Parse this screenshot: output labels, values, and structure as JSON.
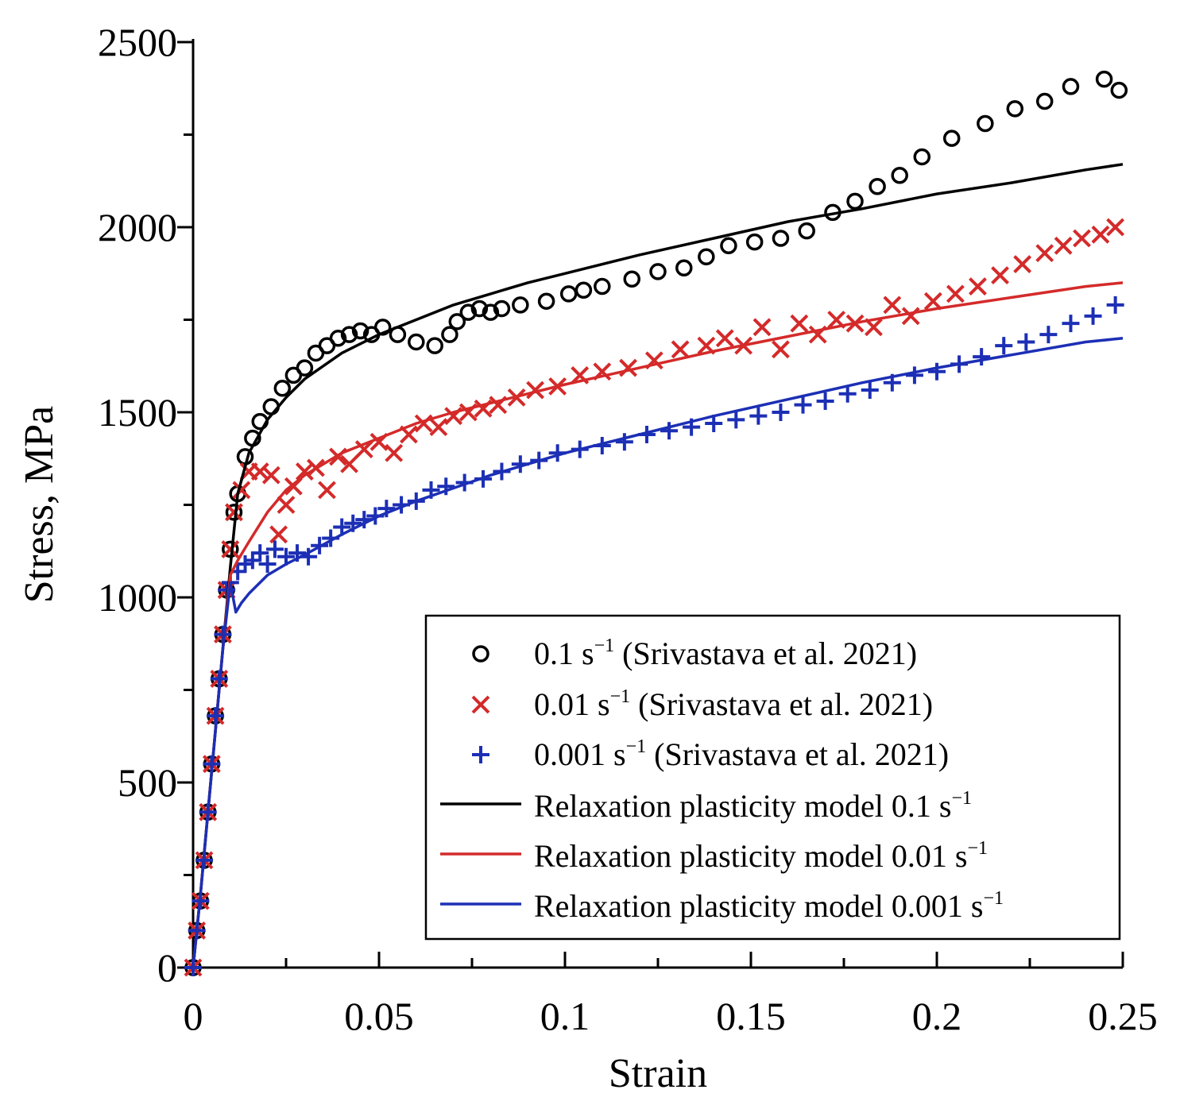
{
  "chart_data": {
    "type": "scatter",
    "xlabel": "Strain",
    "ylabel": "Stress, MPa",
    "xlim": [
      0,
      0.25
    ],
    "ylim": [
      0,
      2500
    ],
    "x_ticks": [
      0,
      0.05,
      0.1,
      0.15,
      0.2,
      0.25
    ],
    "x_tick_labels": [
      "0",
      "0.05",
      "0.1",
      "0.15",
      "0.2",
      "0.25"
    ],
    "y_ticks": [
      0,
      500,
      1000,
      1500,
      2000,
      2500
    ],
    "y_tick_labels": [
      "0",
      "500",
      "1000",
      "1500",
      "2000",
      "2500"
    ],
    "grid": false,
    "legend_position": "bottom-right",
    "series": [
      {
        "name": "0.1 s⁻¹ (Srivastava et al. 2021)",
        "legend_label": "0.1 s",
        "legend_suffix": " (Srivastava et al. 2021)",
        "kind": "scatter",
        "marker": "circle",
        "color": "#000000",
        "x": [
          0.0,
          0.001,
          0.002,
          0.003,
          0.004,
          0.005,
          0.006,
          0.007,
          0.008,
          0.009,
          0.01,
          0.011,
          0.012,
          0.014,
          0.016,
          0.018,
          0.021,
          0.024,
          0.027,
          0.03,
          0.033,
          0.036,
          0.039,
          0.042,
          0.045,
          0.048,
          0.051,
          0.055,
          0.06,
          0.065,
          0.069,
          0.071,
          0.074,
          0.077,
          0.08,
          0.083,
          0.088,
          0.095,
          0.101,
          0.105,
          0.11,
          0.118,
          0.125,
          0.132,
          0.138,
          0.144,
          0.151,
          0.158,
          0.165,
          0.172,
          0.178,
          0.184,
          0.19,
          0.196,
          0.204,
          0.213,
          0.221,
          0.229,
          0.236,
          0.245,
          0.249
        ],
        "y": [
          0,
          100,
          180,
          290,
          420,
          550,
          680,
          780,
          900,
          1020,
          1130,
          1230,
          1280,
          1380,
          1430,
          1475,
          1515,
          1565,
          1600,
          1620,
          1660,
          1680,
          1700,
          1710,
          1720,
          1710,
          1730,
          1710,
          1690,
          1680,
          1710,
          1745,
          1770,
          1780,
          1770,
          1780,
          1790,
          1800,
          1820,
          1830,
          1840,
          1860,
          1880,
          1890,
          1920,
          1950,
          1960,
          1970,
          1990,
          2040,
          2070,
          2110,
          2140,
          2190,
          2240,
          2280,
          2320,
          2340,
          2380,
          2400,
          2370
        ]
      },
      {
        "name": "0.01 s⁻¹ (Srivastava et al. 2021)",
        "legend_label": "0.01 s",
        "legend_suffix": " (Srivastava et al. 2021)",
        "kind": "scatter",
        "marker": "x",
        "color": "#d42a2a",
        "x": [
          0.0,
          0.001,
          0.002,
          0.003,
          0.004,
          0.005,
          0.006,
          0.007,
          0.008,
          0.009,
          0.01,
          0.011,
          0.013,
          0.015,
          0.018,
          0.021,
          0.023,
          0.025,
          0.027,
          0.03,
          0.033,
          0.036,
          0.039,
          0.042,
          0.046,
          0.05,
          0.054,
          0.058,
          0.062,
          0.066,
          0.07,
          0.074,
          0.078,
          0.082,
          0.087,
          0.092,
          0.098,
          0.104,
          0.11,
          0.117,
          0.124,
          0.131,
          0.138,
          0.143,
          0.148,
          0.153,
          0.158,
          0.163,
          0.168,
          0.173,
          0.178,
          0.183,
          0.188,
          0.193,
          0.199,
          0.205,
          0.211,
          0.217,
          0.223,
          0.229,
          0.234,
          0.239,
          0.244,
          0.248
        ],
        "y": [
          0,
          100,
          180,
          290,
          420,
          550,
          680,
          780,
          900,
          1020,
          1130,
          1230,
          1290,
          1340,
          1340,
          1330,
          1170,
          1250,
          1300,
          1340,
          1350,
          1290,
          1380,
          1360,
          1400,
          1420,
          1390,
          1440,
          1470,
          1460,
          1490,
          1500,
          1510,
          1520,
          1540,
          1560,
          1570,
          1600,
          1610,
          1620,
          1640,
          1670,
          1680,
          1700,
          1680,
          1730,
          1670,
          1740,
          1710,
          1750,
          1740,
          1730,
          1790,
          1760,
          1800,
          1820,
          1840,
          1870,
          1900,
          1930,
          1950,
          1970,
          1980,
          2000
        ]
      },
      {
        "name": "0.001 s⁻¹ (Srivastava et al. 2021)",
        "legend_label": "0.001 s",
        "legend_suffix": " (Srivastava et al. 2021)",
        "kind": "scatter",
        "marker": "plus",
        "color": "#1c2fb5",
        "x": [
          0.0,
          0.001,
          0.002,
          0.003,
          0.004,
          0.005,
          0.006,
          0.007,
          0.008,
          0.009,
          0.01,
          0.012,
          0.014,
          0.016,
          0.018,
          0.02,
          0.022,
          0.025,
          0.028,
          0.031,
          0.034,
          0.037,
          0.04,
          0.043,
          0.046,
          0.049,
          0.052,
          0.056,
          0.06,
          0.064,
          0.068,
          0.073,
          0.078,
          0.083,
          0.088,
          0.093,
          0.098,
          0.104,
          0.11,
          0.116,
          0.122,
          0.128,
          0.134,
          0.14,
          0.146,
          0.152,
          0.158,
          0.164,
          0.17,
          0.176,
          0.182,
          0.188,
          0.194,
          0.2,
          0.206,
          0.212,
          0.218,
          0.224,
          0.23,
          0.236,
          0.242,
          0.248
        ],
        "y": [
          0,
          100,
          180,
          290,
          420,
          550,
          680,
          780,
          900,
          1020,
          1040,
          1070,
          1090,
          1100,
          1120,
          1090,
          1130,
          1110,
          1120,
          1110,
          1140,
          1160,
          1190,
          1200,
          1210,
          1220,
          1240,
          1250,
          1260,
          1290,
          1300,
          1310,
          1320,
          1340,
          1360,
          1370,
          1390,
          1400,
          1410,
          1420,
          1440,
          1450,
          1460,
          1470,
          1480,
          1490,
          1500,
          1520,
          1530,
          1550,
          1560,
          1580,
          1600,
          1610,
          1630,
          1650,
          1680,
          1690,
          1710,
          1740,
          1760,
          1790
        ]
      },
      {
        "name": "Relaxation plasticity model 0.1 s⁻¹",
        "legend_label": "Relaxation plasticity model 0.1  s",
        "legend_suffix": "",
        "kind": "line",
        "color": "#000000",
        "x": [
          0.0,
          0.002,
          0.004,
          0.006,
          0.008,
          0.01,
          0.012,
          0.015,
          0.02,
          0.025,
          0.03,
          0.04,
          0.05,
          0.06,
          0.07,
          0.08,
          0.09,
          0.1,
          0.12,
          0.14,
          0.16,
          0.18,
          0.2,
          0.22,
          0.24,
          0.25
        ],
        "y": [
          0,
          200,
          420,
          640,
          860,
          1080,
          1280,
          1390,
          1480,
          1540,
          1590,
          1660,
          1710,
          1750,
          1790,
          1820,
          1850,
          1875,
          1925,
          1970,
          2015,
          2050,
          2090,
          2120,
          2155,
          2170
        ]
      },
      {
        "name": "Relaxation plasticity model 0.01 s⁻¹",
        "legend_label": "Relaxation plasticity model 0.01  s",
        "legend_suffix": "",
        "kind": "line",
        "color": "#d42a2a",
        "x": [
          0.0,
          0.002,
          0.004,
          0.006,
          0.008,
          0.01,
          0.012,
          0.015,
          0.02,
          0.025,
          0.03,
          0.04,
          0.05,
          0.06,
          0.07,
          0.08,
          0.09,
          0.1,
          0.12,
          0.14,
          0.16,
          0.18,
          0.2,
          0.22,
          0.24,
          0.25
        ],
        "y": [
          0,
          200,
          420,
          640,
          860,
          1060,
          1100,
          1150,
          1230,
          1290,
          1330,
          1390,
          1430,
          1470,
          1500,
          1525,
          1550,
          1575,
          1620,
          1665,
          1705,
          1745,
          1780,
          1810,
          1840,
          1850
        ]
      },
      {
        "name": "Relaxation plasticity model 0.001 s⁻¹",
        "legend_label": "Relaxation plasticity model 0.001 s",
        "legend_suffix": "",
        "kind": "line",
        "color": "#1c2fb5",
        "x": [
          0.0,
          0.002,
          0.004,
          0.006,
          0.008,
          0.01,
          0.0115,
          0.013,
          0.015,
          0.02,
          0.025,
          0.03,
          0.04,
          0.05,
          0.06,
          0.07,
          0.08,
          0.09,
          0.1,
          0.12,
          0.14,
          0.16,
          0.18,
          0.2,
          0.22,
          0.24,
          0.25
        ],
        "y": [
          0,
          200,
          420,
          640,
          860,
          1040,
          960,
          985,
          1010,
          1060,
          1090,
          1115,
          1170,
          1220,
          1260,
          1295,
          1330,
          1360,
          1390,
          1440,
          1490,
          1535,
          1580,
          1620,
          1655,
          1690,
          1700
        ]
      }
    ]
  }
}
